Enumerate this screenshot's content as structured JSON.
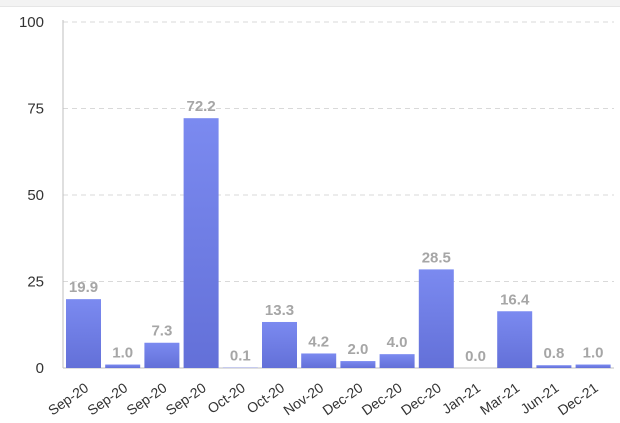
{
  "chart_data": {
    "type": "bar",
    "title": "",
    "xlabel": "",
    "ylabel": "",
    "ylim": [
      0,
      100
    ],
    "yticks": [
      0,
      25,
      50,
      75,
      100
    ],
    "grid": true,
    "bar_color": "#6b78e0",
    "categories": [
      "Sep-20",
      "Sep-20",
      "Sep-20",
      "Sep-20",
      "Oct-20",
      "Oct-20",
      "Nov-20",
      "Dec-20",
      "Dec-20",
      "Dec-20",
      "Jan-21",
      "Mar-21",
      "Jun-21",
      "Dec-21"
    ],
    "values": [
      19.9,
      1.0,
      7.3,
      72.2,
      0.1,
      13.3,
      4.2,
      2.0,
      4.0,
      28.5,
      0.0,
      16.4,
      0.8,
      1.0
    ],
    "data_labels": [
      "19.9",
      "1.0",
      "7.3",
      "72.2",
      "0.1",
      "13.3",
      "4.2",
      "2.0",
      "4.0",
      "28.5",
      "0.0",
      "16.4",
      "0.8",
      "1.0"
    ]
  }
}
